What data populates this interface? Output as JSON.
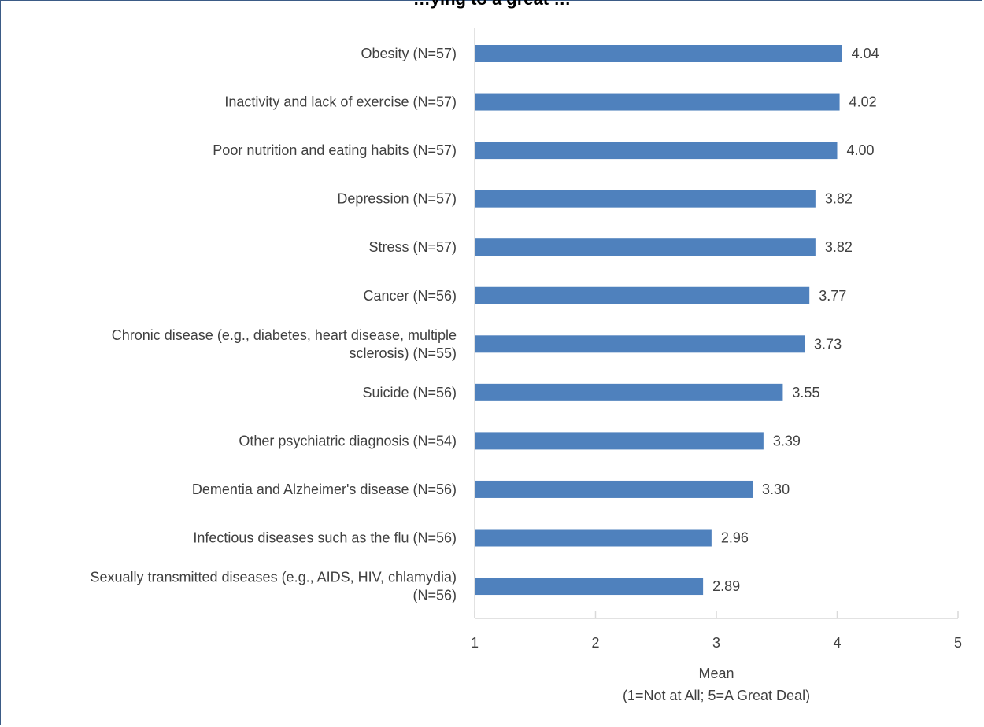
{
  "chart_data": {
    "type": "bar",
    "orientation": "horizontal",
    "title": "…ying to a great …",
    "categories": [
      "Obesity (N=57)",
      "Inactivity and lack of exercise (N=57)",
      "Poor nutrition and eating habits (N=57)",
      "Depression (N=57)",
      "Stress (N=57)",
      "Cancer (N=56)",
      "Chronic disease (e.g., diabetes, heart disease, multiple sclerosis) (N=55)",
      "Suicide (N=56)",
      "Other psychiatric diagnosis (N=54)",
      "Dementia and Alzheimer's disease (N=56)",
      "Infectious diseases such as the flu (N=56)",
      "Sexually transmitted diseases (e.g., AIDS, HIV, chlamydia) (N=56)"
    ],
    "category_lines": [
      [
        "Obesity (N=57)"
      ],
      [
        "Inactivity and lack of exercise (N=57)"
      ],
      [
        "Poor nutrition and eating habits (N=57)"
      ],
      [
        "Depression (N=57)"
      ],
      [
        "Stress (N=57)"
      ],
      [
        "Cancer (N=56)"
      ],
      [
        "Chronic disease (e.g., diabetes, heart disease, multiple",
        "sclerosis) (N=55)"
      ],
      [
        "Suicide (N=56)"
      ],
      [
        "Other psychiatric diagnosis (N=54)"
      ],
      [
        "Dementia and Alzheimer's disease (N=56)"
      ],
      [
        "Infectious diseases such as the flu (N=56)"
      ],
      [
        "Sexually transmitted diseases (e.g., AIDS, HIV, chlamydia)",
        "(N=56)"
      ]
    ],
    "values": [
      4.04,
      4.02,
      4.0,
      3.82,
      3.82,
      3.77,
      3.73,
      3.55,
      3.39,
      3.3,
      2.96,
      2.89
    ],
    "value_labels": [
      "4.04",
      "4.02",
      "4.00",
      "3.82",
      "3.82",
      "3.77",
      "3.73",
      "3.55",
      "3.39",
      "3.30",
      "2.96",
      "2.89"
    ],
    "xlim": [
      1,
      5
    ],
    "xticks": [
      "1",
      "2",
      "3",
      "4",
      "5"
    ],
    "xlabel_lines": [
      "Mean",
      "(1=Not at All; 5=A Great Deal)"
    ],
    "bar_color": "#4f81bd",
    "axis_color": "#d9d9d9",
    "grid": false
  }
}
